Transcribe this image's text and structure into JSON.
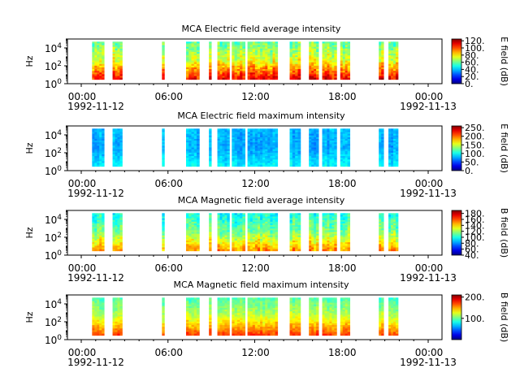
{
  "figure": {
    "x_tick_labels": [
      "00:00",
      "06:00",
      "12:00",
      "18:00",
      "00:00"
    ],
    "x_date_labels": [
      "1992-11-12",
      "1992-11-13"
    ],
    "ylabel": "Hz",
    "y_tick_labels": [
      "10^0",
      "10^2",
      "10^4"
    ]
  },
  "chart_data": [
    {
      "type": "heatmap",
      "title": "MCA  Electric field average intensity",
      "xlabel": "",
      "ylabel": "Hz",
      "xlim": [
        "1992-11-12T00:00",
        "1992-11-13T00:00"
      ],
      "ylim": [
        1,
        100000
      ],
      "y_scale": "log",
      "colormap": "jet",
      "colorbar": {
        "label": "E field (dB)",
        "range": [
          0,
          125
        ],
        "ticks": [
          0,
          20,
          40,
          60,
          80,
          100,
          120
        ],
        "tick_labels": [
          "0.",
          "20.",
          "40.",
          "60.",
          "80.",
          "100.",
          "120."
        ]
      },
      "data_intervals_utc": [
        [
          "00:45",
          "01:35"
        ],
        [
          "02:10",
          "02:50"
        ],
        [
          "05:35",
          "05:45"
        ],
        [
          "07:15",
          "08:10"
        ],
        [
          "08:50",
          "09:00"
        ],
        [
          "09:25",
          "10:15"
        ],
        [
          "10:25",
          "11:20"
        ],
        [
          "11:30",
          "13:35"
        ],
        [
          "14:25",
          "15:10"
        ],
        [
          "15:45",
          "16:25"
        ],
        [
          "16:40",
          "17:40"
        ],
        [
          "17:55",
          "18:35"
        ],
        [
          "20:35",
          "20:55"
        ],
        [
          "21:15",
          "21:55"
        ]
      ],
      "typical_level_db": {
        "low_freq": 110,
        "mid_freq": 75,
        "high_freq": 60
      }
    },
    {
      "type": "heatmap",
      "title": "MCA  Electric field maximum intensity",
      "xlabel": "",
      "ylabel": "Hz",
      "xlim": [
        "1992-11-12T00:00",
        "1992-11-13T00:00"
      ],
      "ylim": [
        1,
        100000
      ],
      "y_scale": "log",
      "colormap": "jet",
      "colorbar": {
        "label": "E field (dB)",
        "range": [
          0,
          260
        ],
        "ticks": [
          0,
          50,
          100,
          150,
          200,
          250
        ],
        "tick_labels": [
          "0.",
          "50.",
          "100.",
          "150.",
          "200.",
          "250."
        ]
      },
      "data_intervals_utc": [
        [
          "00:45",
          "01:35"
        ],
        [
          "02:10",
          "02:50"
        ],
        [
          "05:35",
          "05:45"
        ],
        [
          "07:15",
          "08:10"
        ],
        [
          "08:50",
          "09:00"
        ],
        [
          "09:25",
          "10:15"
        ],
        [
          "10:25",
          "11:20"
        ],
        [
          "11:30",
          "13:35"
        ],
        [
          "14:25",
          "15:10"
        ],
        [
          "15:45",
          "16:25"
        ],
        [
          "16:40",
          "17:40"
        ],
        [
          "17:55",
          "18:35"
        ],
        [
          "20:35",
          "20:55"
        ],
        [
          "21:15",
          "21:55"
        ]
      ],
      "typical_level_db": {
        "low_freq": 95,
        "mid_freq": 75,
        "high_freq": 80
      }
    },
    {
      "type": "heatmap",
      "title": "MCA  Magnetic field average intensity",
      "xlabel": "",
      "ylabel": "Hz",
      "xlim": [
        "1992-11-12T00:00",
        "1992-11-13T00:00"
      ],
      "ylim": [
        1,
        100000
      ],
      "y_scale": "log",
      "colormap": "jet",
      "colorbar": {
        "label": "B field (dB)",
        "range": [
          40,
          190
        ],
        "ticks": [
          40,
          60,
          80,
          100,
          120,
          140,
          160,
          180
        ],
        "tick_labels": [
          "40.",
          "60.",
          "80.",
          "100.",
          "120.",
          "140.",
          "160.",
          "180."
        ]
      },
      "data_intervals_utc": [
        [
          "00:45",
          "01:35"
        ],
        [
          "02:10",
          "02:50"
        ],
        [
          "05:35",
          "05:45"
        ],
        [
          "07:15",
          "08:10"
        ],
        [
          "08:50",
          "09:00"
        ],
        [
          "09:25",
          "10:15"
        ],
        [
          "10:25",
          "11:20"
        ],
        [
          "11:30",
          "13:35"
        ],
        [
          "14:25",
          "15:10"
        ],
        [
          "15:45",
          "16:25"
        ],
        [
          "16:40",
          "17:40"
        ],
        [
          "17:55",
          "18:35"
        ],
        [
          "20:35",
          "20:55"
        ],
        [
          "21:15",
          "21:55"
        ]
      ],
      "typical_level_db": {
        "low_freq": 150,
        "mid_freq": 115,
        "high_freq": 100
      }
    },
    {
      "type": "heatmap",
      "title": "MCA  Magnetic field maximum intensity",
      "xlabel": "",
      "ylabel": "Hz",
      "xlim": [
        "1992-11-12T00:00",
        "1992-11-13T00:00"
      ],
      "ylim": [
        1,
        100000
      ],
      "y_scale": "log",
      "colormap": "jet",
      "colorbar": {
        "label": "B field (dB)",
        "range": [
          0,
          210
        ],
        "ticks": [
          100,
          200
        ],
        "tick_labels": [
          "100.",
          "200."
        ]
      },
      "data_intervals_utc": [
        [
          "00:45",
          "01:35"
        ],
        [
          "02:10",
          "02:50"
        ],
        [
          "05:35",
          "05:45"
        ],
        [
          "07:15",
          "08:10"
        ],
        [
          "08:50",
          "09:00"
        ],
        [
          "09:25",
          "10:15"
        ],
        [
          "10:25",
          "11:20"
        ],
        [
          "11:30",
          "13:35"
        ],
        [
          "14:25",
          "15:10"
        ],
        [
          "15:45",
          "16:25"
        ],
        [
          "16:40",
          "17:40"
        ],
        [
          "17:55",
          "18:35"
        ],
        [
          "20:35",
          "20:55"
        ],
        [
          "21:15",
          "21:55"
        ]
      ],
      "typical_level_db": {
        "low_freq": 170,
        "mid_freq": 120,
        "high_freq": 95
      }
    }
  ]
}
